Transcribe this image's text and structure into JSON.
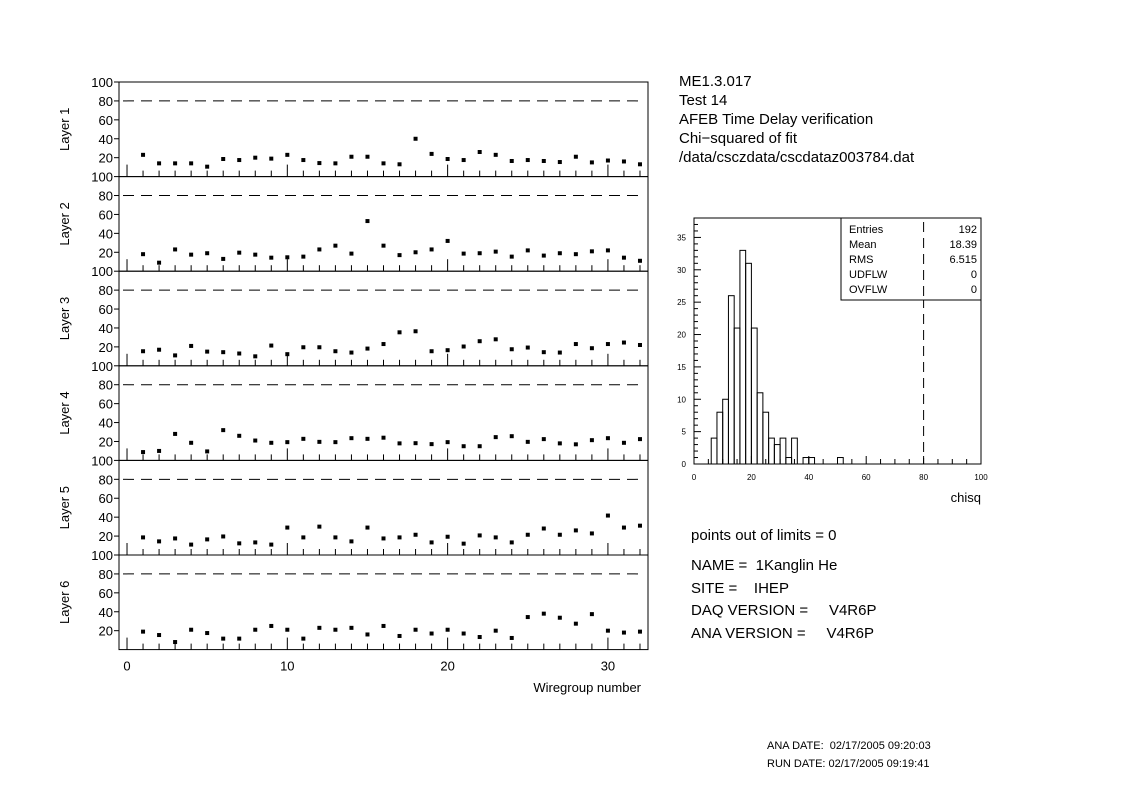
{
  "header": {
    "lines": [
      "ME1.3.017",
      "Test 14",
      "AFEB Time Delay verification",
      "Chi−squared of fit",
      "/data/csczdata/cscdataz003784.dat"
    ]
  },
  "info": {
    "points_out": "points out of limits = 0",
    "name": "NAME =  1Kanglin He",
    "site": "SITE =    IHEP",
    "daq": "DAQ VERSION =     V4R6P",
    "ana": "ANA VERSION =     V4R6P",
    "ana_date": "ANA DATE:  02/17/2005 09:20:03",
    "run_date": "RUN DATE: 02/17/2005 09:19:41"
  },
  "chart_data": [
    {
      "type": "scatter",
      "xlabel": "Wiregroup number",
      "xlim": [
        -0.5,
        32.5
      ],
      "ylim": [
        0,
        100
      ],
      "x_ticks": [
        0,
        10,
        20,
        30
      ],
      "y_ticks": [
        20,
        40,
        60,
        80,
        100
      ],
      "limit_line": 80,
      "x": [
        1,
        2,
        3,
        4,
        5,
        6,
        7,
        8,
        9,
        10,
        11,
        12,
        13,
        14,
        15,
        16,
        17,
        18,
        19,
        20,
        21,
        22,
        23,
        24,
        25,
        26,
        27,
        28,
        29,
        30,
        31,
        32
      ],
      "panels": [
        {
          "ylabel": "Layer 1",
          "values": [
            23,
            14,
            14,
            14,
            10.5,
            18.6,
            17.5,
            20,
            19,
            23,
            17.5,
            14.3,
            14,
            21,
            21,
            14,
            13,
            40,
            24,
            18.6,
            17.5,
            26,
            23,
            16.5,
            17.5,
            16.5,
            15.4,
            21,
            15,
            17,
            16,
            13
          ]
        },
        {
          "ylabel": "Layer 2",
          "values": [
            18,
            9,
            23,
            17.5,
            19,
            13,
            19.6,
            17.5,
            14.3,
            14.7,
            15.4,
            23,
            27,
            18.6,
            53,
            27,
            17,
            20,
            23,
            32,
            18.6,
            19,
            20.7,
            15.4,
            22,
            16.5,
            19,
            18,
            21,
            22,
            14.3,
            11
          ]
        },
        {
          "ylabel": "Layer 3",
          "values": [
            15.4,
            17,
            11,
            21,
            15,
            14.4,
            13,
            10,
            21.4,
            12.3,
            19.6,
            19.6,
            15.4,
            14,
            18.2,
            23,
            35.4,
            36.5,
            15.4,
            16.5,
            20.4,
            26,
            28,
            17.5,
            19.3,
            14.4,
            14,
            23,
            18.6,
            23,
            24.6,
            22
          ]
        },
        {
          "ylabel": "Layer 4",
          "values": [
            8.8,
            10,
            28,
            18.6,
            9.5,
            32,
            26,
            21,
            18.6,
            19.3,
            22.8,
            19.6,
            19.3,
            23.5,
            22.8,
            24,
            18,
            18.2,
            17.2,
            19.3,
            15,
            15,
            24.6,
            25.6,
            19.6,
            22.5,
            18,
            17,
            21.4,
            23.5,
            18.6,
            22.5
          ]
        },
        {
          "ylabel": "Layer 5",
          "values": [
            18.6,
            14.4,
            17.5,
            11,
            16.5,
            19.6,
            12.3,
            13.3,
            11,
            29,
            18.6,
            30,
            18.6,
            14.4,
            29,
            17.5,
            18.6,
            21.4,
            13.3,
            19.3,
            12,
            20.7,
            18.6,
            13.3,
            21.4,
            28,
            21.4,
            26,
            22.8,
            41.7,
            29,
            31
          ]
        },
        {
          "ylabel": "Layer 6",
          "values": [
            19,
            15.4,
            8,
            21,
            17.5,
            11.6,
            11.6,
            21,
            25,
            21,
            11.6,
            23,
            21,
            23,
            16,
            25,
            14.4,
            21,
            17,
            21,
            17,
            13.3,
            20,
            12.3,
            34.4,
            38,
            33.7,
            27.4,
            37.5,
            20,
            18,
            19
          ]
        }
      ]
    },
    {
      "type": "bar",
      "xlabel": "chisq",
      "xlim": [
        0,
        100
      ],
      "ylim": [
        0,
        38
      ],
      "bin_width": 2,
      "x_ticks": [
        0,
        20,
        40,
        60,
        80,
        100
      ],
      "y_ticks": [
        0,
        5,
        10,
        15,
        20,
        25,
        30,
        35
      ],
      "limit_line": 80,
      "bin_edges_start": [
        6,
        8,
        10,
        12,
        14,
        16,
        18,
        20,
        22,
        24,
        26,
        28,
        30,
        32,
        34,
        36,
        38,
        40,
        50
      ],
      "counts": [
        4,
        8,
        10,
        26,
        21,
        33,
        31,
        21,
        11,
        8,
        4,
        3,
        4,
        1,
        4,
        0,
        1,
        1,
        1
      ],
      "stats": [
        {
          "label": "Entries",
          "value": "192"
        },
        {
          "label": "Mean",
          "value": "18.39"
        },
        {
          "label": "RMS",
          "value": "6.515"
        },
        {
          "label": "UDFLW",
          "value": "0"
        },
        {
          "label": "OVFLW",
          "value": "0"
        }
      ]
    }
  ]
}
